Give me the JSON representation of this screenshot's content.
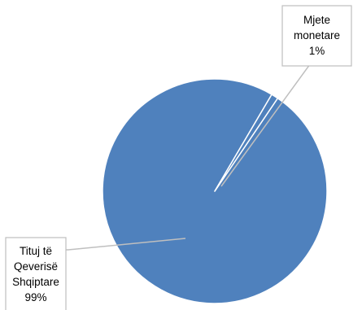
{
  "chart_data": {
    "type": "pie",
    "title": "",
    "slices": [
      {
        "label_lines": [
          "Tituj të",
          "Qeverisë",
          "Shqiptare"
        ],
        "value": 99,
        "percent_label": "99%",
        "color": "#4F81BD"
      },
      {
        "label_lines": [
          "Mjete",
          "monetare"
        ],
        "value": 1,
        "percent_label": "1%",
        "color": "#4F81BD"
      }
    ],
    "legend": "none",
    "label_style": "callout"
  }
}
